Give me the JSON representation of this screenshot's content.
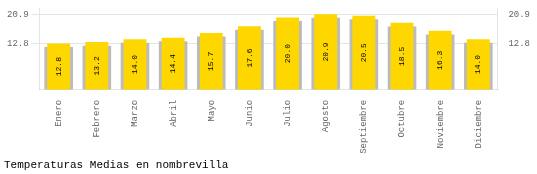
{
  "chart_data": {
    "type": "bar",
    "title": "Temperaturas Medias en nombrevilla",
    "categories": [
      "Enero",
      "Febrero",
      "Marzo",
      "Abril",
      "Mayo",
      "Junio",
      "Julio",
      "Agosto",
      "Septiembre",
      "Octubre",
      "Noviembre",
      "Diciembre"
    ],
    "series": [
      {
        "color": "#BBBBBB",
        "values": [
          11.8,
          12.2,
          13.0,
          13.4,
          14.7,
          16.6,
          19.0,
          19.9,
          19.5,
          17.5,
          15.3,
          13.0
        ]
      },
      {
        "color": "#FFD700",
        "values": [
          12.8,
          13.2,
          14.0,
          14.4,
          15.7,
          17.6,
          20.0,
          20.9,
          20.5,
          18.5,
          16.3,
          14.0
        ],
        "value_labels": [
          "12.8",
          "13.2",
          "14.0",
          "14.4",
          "15.7",
          "17.6",
          "20.0",
          "20.9",
          "20.5",
          "18.5",
          "16.3",
          "14.0"
        ],
        "data_labels": true
      }
    ],
    "ylim": [
      0,
      22.5
    ],
    "yticks": [
      12.8,
      20.9
    ],
    "y2lim": [
      0,
      22.5
    ],
    "y2ticks": [
      12.8,
      20.9
    ],
    "grid": true
  }
}
